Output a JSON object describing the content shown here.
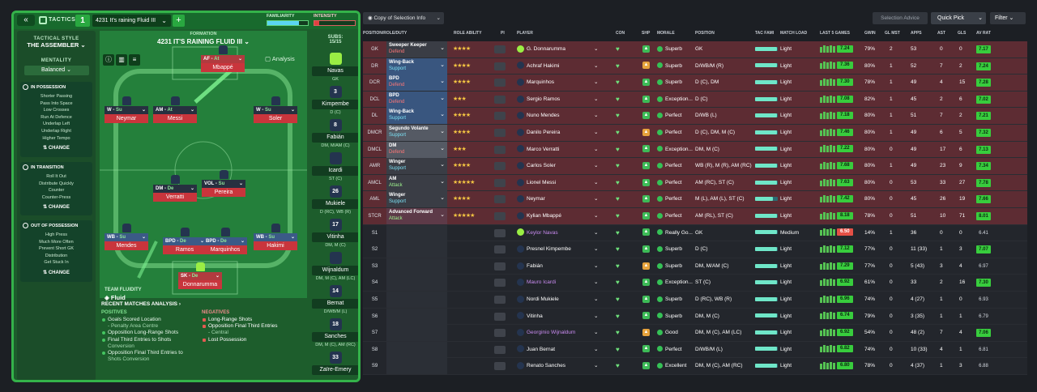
{
  "left": {
    "tactics_label": "TACTICS",
    "tab_num": "1",
    "tactic_name": "4231 It's raining Fluid III",
    "familiarity": "FAMILIARITY",
    "intensity": "INTENSITY",
    "formation_label": "FORMATION",
    "formation_name": "4231 IT'S RAINING FLUID III",
    "analysis": "Analysis",
    "subs_label": "SUBS:",
    "subs_count": "15/15",
    "tactical_style_label": "TACTICAL STYLE",
    "tactical_style": "THE ASSEMBLER",
    "mentality_label": "MENTALITY",
    "mentality": "Balanced",
    "in_possession": {
      "title": "IN POSSESSION",
      "items": [
        "Shorter Passing",
        "Pass Into Space",
        "Low Crosses",
        "Run At Defence",
        "Underlap Left",
        "Underlap Right",
        "Higher Tempo"
      ],
      "change": "CHANGE"
    },
    "in_transition": {
      "title": "IN TRANSITION",
      "items": [
        "Roll It Out",
        "Distribute Quickly",
        "Counter",
        "Counter-Press"
      ],
      "change": "CHANGE"
    },
    "out_possession": {
      "title": "OUT OF POSSESSION",
      "items": [
        "High Press",
        "Much More Often",
        "Prevent Short GK",
        "Distribution",
        "Get Stuck In"
      ],
      "change": "CHANGE"
    },
    "team_fluidity_label": "TEAM FLUIDITY",
    "team_fluidity": "Fluid",
    "rma_title": "RECENT MATCHES ANALYSIS",
    "positives_label": "POSITIVES",
    "negatives_label": "NEGATIVES",
    "positives": [
      "Goals Scored Location",
      "- Penalty Area Centre",
      "Opposition Long-Range Shots",
      "Final Third Entries to Shots",
      "Conversion",
      "Opposition Final Third Entries to",
      "Shots Conversion"
    ],
    "negatives": [
      "Long-Range Shots",
      "Opposition Final Third Entries",
      "- Central",
      "Lost Possession"
    ],
    "pitch": [
      {
        "role": "AF",
        "duty": "At",
        "name": "Mbappé"
      },
      {
        "role": "W",
        "duty": "Su",
        "name": "Neymar"
      },
      {
        "role": "AM",
        "duty": "At",
        "name": "Messi"
      },
      {
        "role": "W",
        "duty": "Su",
        "name": "Soler"
      },
      {
        "role": "DM",
        "duty": "De",
        "name": "Verratti"
      },
      {
        "role": "VOL",
        "duty": "Su",
        "name": "Pereira"
      },
      {
        "role": "WB",
        "duty": "Su",
        "name": "Mendes"
      },
      {
        "role": "BPD",
        "duty": "De",
        "name": "Ramos"
      },
      {
        "role": "BPD",
        "duty": "De",
        "name": "Marquinhos"
      },
      {
        "role": "WB",
        "duty": "Su",
        "name": "Hakimi"
      },
      {
        "role": "SK",
        "duty": "De",
        "name": "Donnarumma"
      }
    ],
    "subs": [
      {
        "num": "",
        "name": "Navas",
        "pos": "GK"
      },
      {
        "num": "3",
        "name": "Kimpembe",
        "pos": "D (C)"
      },
      {
        "num": "8",
        "name": "Fabián",
        "pos": "DM, M/AM (C)"
      },
      {
        "num": "",
        "name": "Icardi",
        "pos": "ST (C)"
      },
      {
        "num": "26",
        "name": "Mukiele",
        "pos": "D (RC), WB (R)"
      },
      {
        "num": "17",
        "name": "Vitinha",
        "pos": "DM, M (C)"
      },
      {
        "num": "",
        "name": "Wijnaldum",
        "pos": "DM, M (C), AM (LC)"
      },
      {
        "num": "14",
        "name": "Bernat",
        "pos": "D/WB/M (L)"
      },
      {
        "num": "18",
        "name": "Sanches",
        "pos": "DM, M (C), AM (RC)"
      },
      {
        "num": "33",
        "name": "Zaïre-Emery",
        "pos": ""
      }
    ]
  },
  "right": {
    "view": "Copy of Selection Info",
    "selection_advice": "Selection Advice",
    "quick_pick": "Quick Pick",
    "filter": "Filter",
    "headers": [
      "POSITION/ROLE/DUTY",
      "ROLE ABILITY",
      "PI",
      "PLAYER",
      "CON",
      "SHP",
      "MORALE",
      "POSITION",
      "TAC FAMI",
      "MATCH LOAD",
      "LAST 5 GAMES",
      "GWIN",
      "GL MST",
      "APPS",
      "AST",
      "GLS",
      "AV RAT"
    ],
    "rows": [
      {
        "pos": "GK",
        "role": "Sweeper Keeper",
        "duty": "Defend",
        "dc": "d",
        "rc": "g",
        "stars": "★★★★",
        "player": "G. Donnarumma",
        "gk": true,
        "morale": "Superb",
        "position": "GK",
        "load": "Light",
        "rating": "7.24",
        "gwin": "79%",
        "glmst": "2",
        "apps": "53",
        "ast": "0",
        "gls": "0",
        "av": "7.17",
        "av_c": "avg",
        "fam": 95
      },
      {
        "pos": "DR",
        "role": "Wing-Back",
        "duty": "Support",
        "dc": "s",
        "rc": "s2",
        "stars": "★★★★",
        "player": "Achraf Hakimi",
        "morale": "Superb",
        "position": "D/WB/M (R)",
        "load": "Light",
        "rating": "7.36",
        "gwin": "80%",
        "glmst": "1",
        "apps": "52",
        "ast": "7",
        "gls": "2",
        "av": "7.24",
        "av_c": "avg",
        "fam": 95
      },
      {
        "pos": "DCR",
        "role": "BPD",
        "duty": "Defend",
        "dc": "d",
        "rc": "s2",
        "stars": "★★★★",
        "player": "Marquinhos",
        "morale": "Superb",
        "position": "D (C), DM",
        "load": "Light",
        "rating": "7.30",
        "gwin": "78%",
        "glmst": "1",
        "apps": "49",
        "ast": "4",
        "gls": "15",
        "av": "7.28",
        "av_c": "avg",
        "fam": 95
      },
      {
        "pos": "DCL",
        "role": "BPD",
        "duty": "Defend",
        "dc": "d",
        "rc": "s2",
        "stars": "★★★",
        "player": "Sergio Ramos",
        "morale": "Exception...",
        "position": "D (C)",
        "load": "Light",
        "rating": "7.08",
        "gwin": "82%",
        "glmst": "1",
        "apps": "45",
        "ast": "2",
        "gls": "6",
        "av": "7.02",
        "av_c": "avg",
        "fam": 95
      },
      {
        "pos": "DL",
        "role": "Wing-Back",
        "duty": "Support",
        "dc": "s",
        "rc": "s2",
        "stars": "★★★★",
        "player": "Nuno Mendes",
        "morale": "Perfect",
        "position": "D/WB (L)",
        "load": "Light",
        "rating": "7.18",
        "gwin": "80%",
        "glmst": "1",
        "apps": "51",
        "ast": "7",
        "gls": "2",
        "av": "7.21",
        "av_c": "avg",
        "fam": 95
      },
      {
        "pos": "DMCR",
        "role": "Segundo Volante",
        "duty": "Support",
        "dc": "s",
        "rc": "d",
        "stars": "★★★★",
        "player": "Danilo Pereira",
        "morale": "Perfect",
        "position": "D (C), DM, M (C)",
        "load": "Light",
        "rating": "7.46",
        "gwin": "80%",
        "glmst": "1",
        "apps": "49",
        "ast": "6",
        "gls": "5",
        "av": "7.32",
        "av_c": "avg",
        "fam": 95
      },
      {
        "pos": "DMCL",
        "role": "DM",
        "duty": "Defend",
        "dc": "d",
        "rc": "d",
        "stars": "★★★",
        "player": "Marco Verratti",
        "morale": "Exception...",
        "position": "DM, M (C)",
        "load": "Light",
        "rating": "7.22",
        "gwin": "80%",
        "glmst": "0",
        "apps": "49",
        "ast": "17",
        "gls": "6",
        "av": "7.13",
        "av_c": "avg",
        "fam": 95
      },
      {
        "pos": "AMR",
        "role": "Winger",
        "duty": "Support",
        "dc": "s",
        "rc": "g",
        "stars": "★★★★",
        "player": "Carlos Soler",
        "morale": "Perfect",
        "position": "WB (R), M (R), AM (RC)",
        "load": "Light",
        "rating": "7.68",
        "gwin": "80%",
        "glmst": "1",
        "apps": "49",
        "ast": "23",
        "gls": "9",
        "av": "7.34",
        "av_c": "avg",
        "fam": 95
      },
      {
        "pos": "AMCL",
        "role": "AM",
        "duty": "Attack",
        "dc": "a",
        "rc": "g",
        "stars": "★★★★★",
        "player": "Lionel Messi",
        "morale": "Perfect",
        "position": "AM (RC), ST (C)",
        "load": "Light",
        "rating": "7.63",
        "gwin": "80%",
        "glmst": "0",
        "apps": "53",
        "ast": "33",
        "gls": "27",
        "av": "7.78",
        "av_c": "avg",
        "fam": 95
      },
      {
        "pos": "AML",
        "role": "Winger",
        "duty": "Support",
        "dc": "s",
        "rc": "g",
        "stars": "★★★★",
        "player": "Neymar",
        "morale": "Perfect",
        "position": "M (L), AM (L), ST (C)",
        "load": "Light",
        "rating": "7.42",
        "gwin": "80%",
        "glmst": "0",
        "apps": "45",
        "ast": "26",
        "gls": "19",
        "av": "7.66",
        "av_c": "avg",
        "fam": 80
      },
      {
        "pos": "STCR",
        "role": "Advanced Forward",
        "duty": "Attack",
        "dc": "a",
        "rc": "a",
        "stars": "★★★★★",
        "player": "Kylian Mbappé",
        "morale": "Perfect",
        "position": "AM (RL), ST (C)",
        "load": "Light",
        "rating": "8.18",
        "gwin": "78%",
        "glmst": "0",
        "apps": "51",
        "ast": "10",
        "gls": "71",
        "av": "8.01",
        "av_c": "avg",
        "fam": 95
      },
      {
        "pos": "S1",
        "player": "Keylor Navas",
        "gk": true,
        "pc": "#c98bf0",
        "morale": "Really Go...",
        "position": "GK",
        "load": "Medium",
        "rating": "6.50",
        "rr": true,
        "gwin": "14%",
        "glmst": "1",
        "apps": "36",
        "ast": "0",
        "gls": "0",
        "av": "6.41",
        "av_c": "avn",
        "fam": 95
      },
      {
        "pos": "S2",
        "player": "Presnel Kimpembe",
        "morale": "Superb",
        "position": "D (C)",
        "load": "Light",
        "rating": "7.12",
        "gwin": "77%",
        "glmst": "0",
        "apps": "11 (33)",
        "ast": "1",
        "gls": "3",
        "av": "7.07",
        "av_c": "avg",
        "fam": 95
      },
      {
        "pos": "S3",
        "player": "Fabián",
        "morale": "Superb",
        "position": "DM, M/AM (C)",
        "load": "Light",
        "rating": "7.29",
        "gwin": "77%",
        "glmst": "0",
        "apps": "5 (43)",
        "ast": "3",
        "gls": "4",
        "av": "6.97",
        "av_c": "avn",
        "fam": 95
      },
      {
        "pos": "S4",
        "player": "Mauro Icardi",
        "pc": "#c98bf0",
        "morale": "Exception...",
        "position": "ST (C)",
        "load": "Light",
        "rating": "6.92",
        "gwin": "61%",
        "glmst": "0",
        "apps": "33",
        "ast": "2",
        "gls": "16",
        "av": "7.30",
        "av_c": "avg",
        "fam": 95
      },
      {
        "pos": "S5",
        "player": "Nordi Mukiele",
        "morale": "Superb",
        "position": "D (RC), WB (R)",
        "load": "Light",
        "rating": "6.96",
        "gwin": "74%",
        "glmst": "0",
        "apps": "4 (27)",
        "ast": "1",
        "gls": "0",
        "av": "6.93",
        "av_c": "avn",
        "fam": 95
      },
      {
        "pos": "S6",
        "player": "Vitinha",
        "morale": "Superb",
        "position": "DM, M (C)",
        "load": "Light",
        "rating": "6.74",
        "gwin": "79%",
        "glmst": "0",
        "apps": "3 (35)",
        "ast": "1",
        "gls": "1",
        "av": "6.79",
        "av_c": "avn",
        "fam": 95
      },
      {
        "pos": "S7",
        "player": "Georginio Wijnaldum",
        "pc": "#c98bf0",
        "morale": "Good",
        "position": "DM, M (C), AM (LC)",
        "load": "Light",
        "rating": "6.92",
        "gwin": "54%",
        "glmst": "0",
        "apps": "48 (2)",
        "ast": "7",
        "gls": "4",
        "av": "7.06",
        "av_c": "avg",
        "fam": 95
      },
      {
        "pos": "S8",
        "player": "Juan Bernat",
        "morale": "Perfect",
        "position": "D/WB/M (L)",
        "load": "Light",
        "rating": "6.82",
        "gwin": "74%",
        "glmst": "0",
        "apps": "10 (33)",
        "ast": "4",
        "gls": "1",
        "av": "6.81",
        "av_c": "avn",
        "fam": 95
      },
      {
        "pos": "S9",
        "player": "Renato Sanches",
        "morale": "Excellent",
        "position": "DM, M (C), AM (RC)",
        "load": "Light",
        "rating": "6.80",
        "gwin": "78%",
        "glmst": "0",
        "apps": "4 (37)",
        "ast": "1",
        "gls": "3",
        "av": "6.88",
        "av_c": "avn",
        "fam": 95
      }
    ]
  }
}
